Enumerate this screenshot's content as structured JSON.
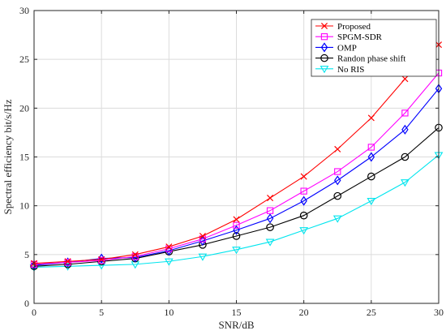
{
  "chart_data": {
    "type": "line",
    "xlabel": "SNR/dB",
    "ylabel": "Spectral efficiency bit/s/Hz",
    "xlim": [
      0,
      30
    ],
    "ylim": [
      0,
      30
    ],
    "xticks": [
      "0",
      "5",
      "10",
      "15",
      "20",
      "25",
      "30"
    ],
    "yticks": [
      "0",
      "5",
      "10",
      "15",
      "20",
      "25",
      "30"
    ],
    "grid": true,
    "legend_position": "top-right",
    "x": [
      0,
      2.5,
      5,
      7.5,
      10,
      12.5,
      15,
      17.5,
      20,
      22.5,
      25,
      27.5,
      30
    ],
    "series": [
      {
        "name": "Proposed",
        "color": "#ff0000",
        "marker": "x",
        "values": [
          4.1,
          4.3,
          4.5,
          5.0,
          5.8,
          6.9,
          8.6,
          10.8,
          13.0,
          15.8,
          19.0,
          23.0,
          26.5
        ]
      },
      {
        "name": "SPGM-SDR",
        "color": "#ff00ff",
        "marker": "square",
        "values": [
          4.0,
          4.2,
          4.4,
          4.8,
          5.6,
          6.6,
          8.0,
          9.5,
          11.5,
          13.5,
          16.0,
          19.5,
          23.6
        ]
      },
      {
        "name": "OMP",
        "color": "#0000ff",
        "marker": "diamond",
        "values": [
          3.9,
          4.2,
          4.6,
          4.7,
          5.4,
          6.4,
          7.5,
          8.7,
          10.5,
          12.6,
          15.0,
          17.8,
          22.0
        ]
      },
      {
        "name": "Randon phase shift",
        "color": "#000000",
        "marker": "circle",
        "values": [
          3.8,
          4.0,
          4.3,
          4.6,
          5.3,
          6.0,
          6.9,
          7.8,
          9.0,
          11.0,
          13.0,
          15.0,
          18.0
        ]
      },
      {
        "name": "No RIS",
        "color": "#00e5ee",
        "marker": "triangle-down",
        "values": [
          3.7,
          3.8,
          3.9,
          4.0,
          4.3,
          4.8,
          5.5,
          6.3,
          7.5,
          8.7,
          10.5,
          12.4,
          15.2
        ]
      }
    ]
  }
}
